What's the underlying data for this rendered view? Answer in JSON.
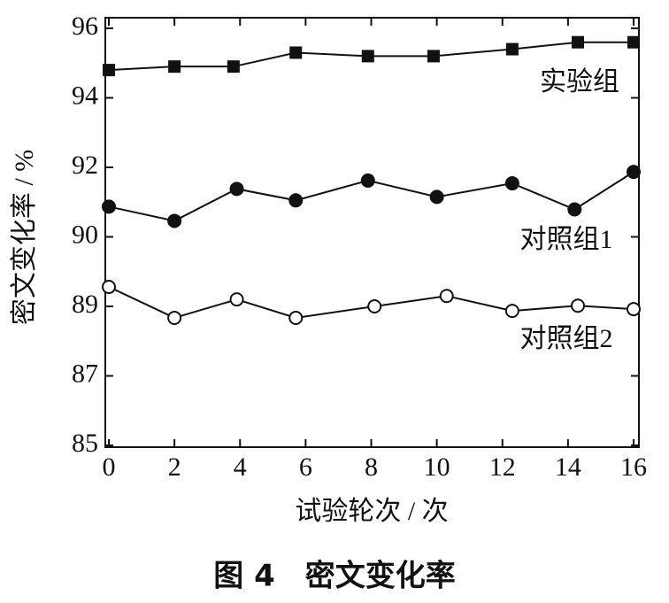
{
  "chart_data": {
    "type": "line",
    "title": "图 4　密文变化率",
    "x_label": "试验轮次 / 次",
    "y_label": "密文变化率 / %",
    "xlim": [
      0,
      16
    ],
    "xticks": [
      0,
      2,
      4,
      6,
      8,
      10,
      12,
      14,
      16
    ],
    "ylim": [
      85,
      96
    ],
    "yticks": [
      85,
      87,
      89,
      90,
      92,
      94,
      96
    ],
    "series": [
      {
        "name": "实验组",
        "color": "#111111",
        "marker": "square",
        "x": [
          0,
          2,
          3.8,
          5.7,
          7.9,
          9.9,
          12.3,
          14.3,
          16
        ],
        "values": [
          94.8,
          94.9,
          94.9,
          95.3,
          95.2,
          95.2,
          95.4,
          95.6,
          95.6
        ]
      },
      {
        "name": "对照组1",
        "color": "#111111",
        "marker": "circle",
        "x": [
          0,
          2,
          3.9,
          5.7,
          7.9,
          10,
          12.3,
          14.2,
          16
        ],
        "values": [
          90.87,
          90.46,
          91.38,
          91.05,
          91.62,
          91.15,
          91.54,
          90.79,
          91.87
        ]
      },
      {
        "name": "对照组2",
        "color": "#111111",
        "marker": "open-circle",
        "x": [
          0,
          2,
          3.9,
          5.7,
          8.1,
          10.3,
          12.3,
          14.3,
          16
        ],
        "values": [
          89.28,
          88.67,
          89.1,
          88.67,
          89.0,
          89.15,
          88.87,
          89.01,
          88.92
        ]
      }
    ]
  }
}
